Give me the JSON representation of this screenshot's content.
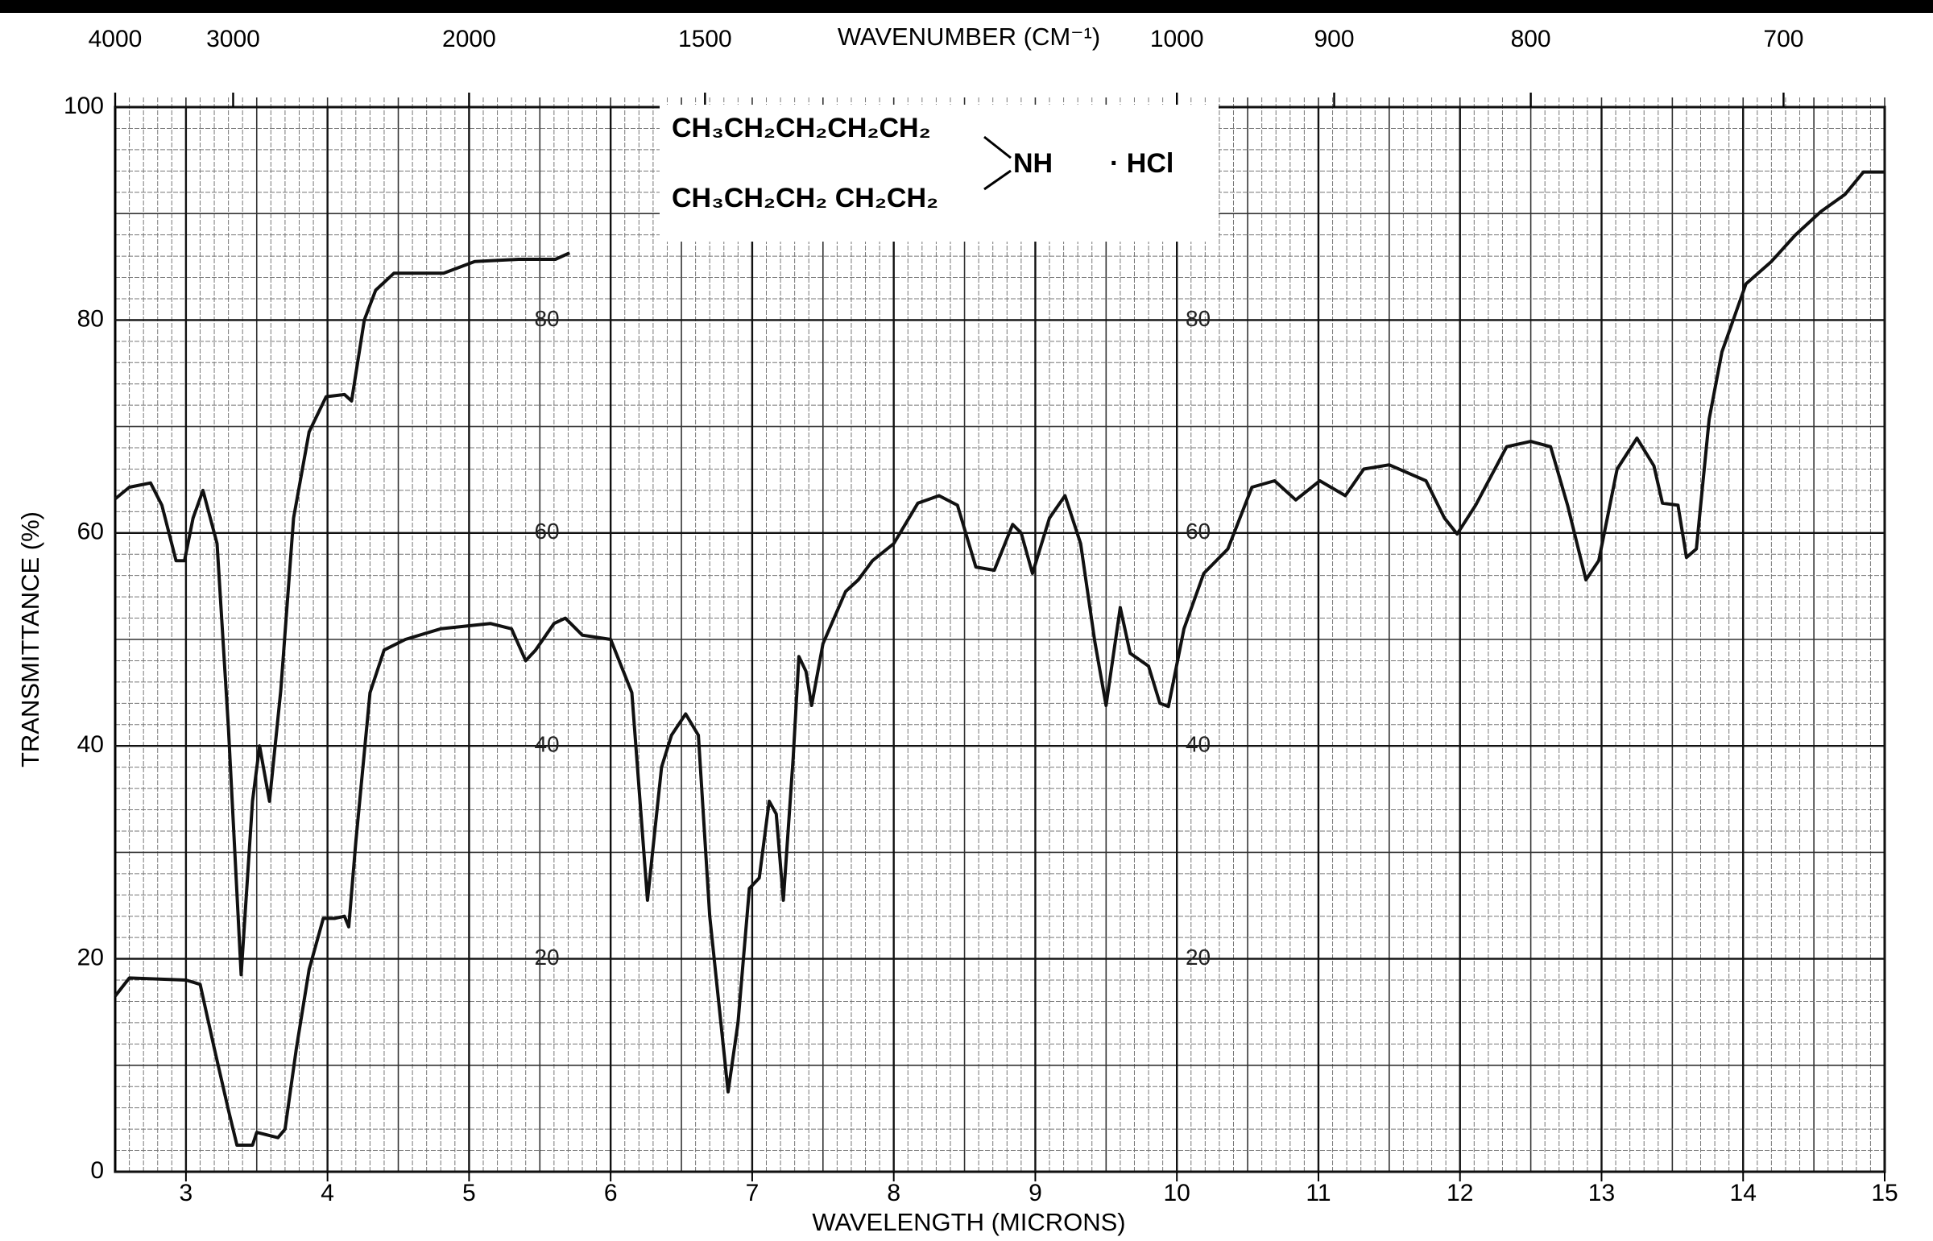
{
  "chart_data": {
    "type": "line",
    "x_label": "WAVELENGTH (MICRONS)",
    "x2_label": "WAVENUMBER (CM⁻¹)",
    "y_label": "TRANSMITTANCE (%)",
    "xlim": [
      2.5,
      15
    ],
    "ylim": [
      0,
      100
    ],
    "xticks": [
      3,
      4,
      5,
      6,
      7,
      8,
      9,
      10,
      11,
      12,
      13,
      14,
      15
    ],
    "x2ticks": [
      4000,
      3000,
      2000,
      1500,
      1000,
      900,
      800,
      700
    ],
    "yticks": [
      0,
      20,
      40,
      60,
      80,
      100
    ],
    "inner_labels": [
      80,
      60,
      40,
      20
    ],
    "grid": true,
    "annotation": {
      "line1": "CH₃CH₂CH₂CH₂CH₂",
      "line2": "CH₃CH₂CH₂ CH₂CH₂",
      "amine": "NH",
      "salt": "· HCl"
    },
    "series": [
      {
        "color": "#111111",
        "x": [
          2.5,
          2.6,
          3.0,
          3.1,
          3.2,
          3.3,
          3.36,
          3.47,
          3.5,
          3.65,
          3.7,
          3.78,
          3.87,
          3.97,
          4.05,
          4.12,
          4.15,
          4.2,
          4.3,
          4.4,
          4.55,
          4.8,
          5.15,
          5.3,
          5.4,
          5.47,
          5.6,
          5.68,
          5.8,
          6.0,
          6.15,
          6.26,
          6.36,
          6.43,
          6.53,
          6.62,
          6.7,
          6.83,
          6.9,
          6.98,
          7.05,
          7.12,
          7.17,
          7.22,
          7.29,
          7.33,
          7.38,
          7.42,
          7.5,
          7.66,
          7.75,
          7.85,
          8.0,
          8.17,
          8.32,
          8.45,
          8.58,
          8.71,
          8.84,
          8.9,
          8.98,
          9.1,
          9.21,
          9.32,
          9.42,
          9.5,
          9.6,
          9.67,
          9.8,
          9.88,
          9.94,
          10.05,
          10.19,
          10.36,
          10.53,
          10.69,
          10.84,
          11.01,
          11.19,
          11.32,
          11.5,
          11.76,
          11.89,
          11.98,
          12.11,
          12.33,
          12.5,
          12.64,
          12.76,
          12.89,
          12.98,
          13.11,
          13.25,
          13.37,
          13.43,
          13.54,
          13.6,
          13.67,
          13.76,
          13.85,
          14.02,
          14.2,
          14.37,
          14.55,
          14.72,
          14.85,
          15.0
        ],
        "values": [
          16.5,
          18.2,
          18,
          17.6,
          11.6,
          5.8,
          2.5,
          2.5,
          3.7,
          3.2,
          4,
          11.6,
          19,
          23.8,
          23.8,
          24,
          23,
          31,
          45,
          49,
          50,
          51,
          51.5,
          51,
          48,
          49,
          51.5,
          52,
          50.4,
          50,
          45,
          25.5,
          38,
          41,
          43,
          41,
          24,
          7.5,
          14,
          26.6,
          27.6,
          34.8,
          33.6,
          25.5,
          39,
          48.4,
          47,
          43.8,
          49.6,
          54.5,
          55.6,
          57.4,
          59,
          62.8,
          63.5,
          62.6,
          56.8,
          56.5,
          60.8,
          60,
          56.2,
          61.4,
          63.5,
          59,
          49.8,
          43.8,
          53,
          48.7,
          47.5,
          44,
          43.7,
          51,
          56.2,
          58.5,
          64.3,
          64.9,
          63.1,
          64.9,
          63.5,
          66,
          66.4,
          64.9,
          61.4,
          59.9,
          62.6,
          68.1,
          68.6,
          68.1,
          62.6,
          55.6,
          57.4,
          66,
          68.9,
          66.3,
          62.8,
          62.6,
          57.7,
          58.5,
          70.7,
          77,
          83.4,
          85.5,
          88,
          90.2,
          91.8,
          93.9,
          93.9
        ]
      },
      {
        "color": "#111111",
        "x": [
          2.5,
          2.6,
          2.75,
          2.83,
          2.93,
          2.99,
          3.05,
          3.12,
          3.22,
          3.3,
          3.39,
          3.47,
          3.52,
          3.59,
          3.67,
          3.76,
          3.87,
          3.99,
          4.12,
          4.17,
          4.26,
          4.34,
          4.47,
          4.82,
          5.04,
          5.35,
          5.61,
          5.71
        ],
        "values": [
          63.2,
          64.3,
          64.7,
          62.6,
          57.4,
          57.4,
          61.4,
          64,
          59,
          41.7,
          18.5,
          34.8,
          40,
          34.8,
          45.2,
          61.4,
          69.5,
          72.8,
          73,
          72.4,
          80,
          82.8,
          84.4,
          84.4,
          85.5,
          85.7,
          85.7,
          86.3
        ]
      }
    ]
  }
}
